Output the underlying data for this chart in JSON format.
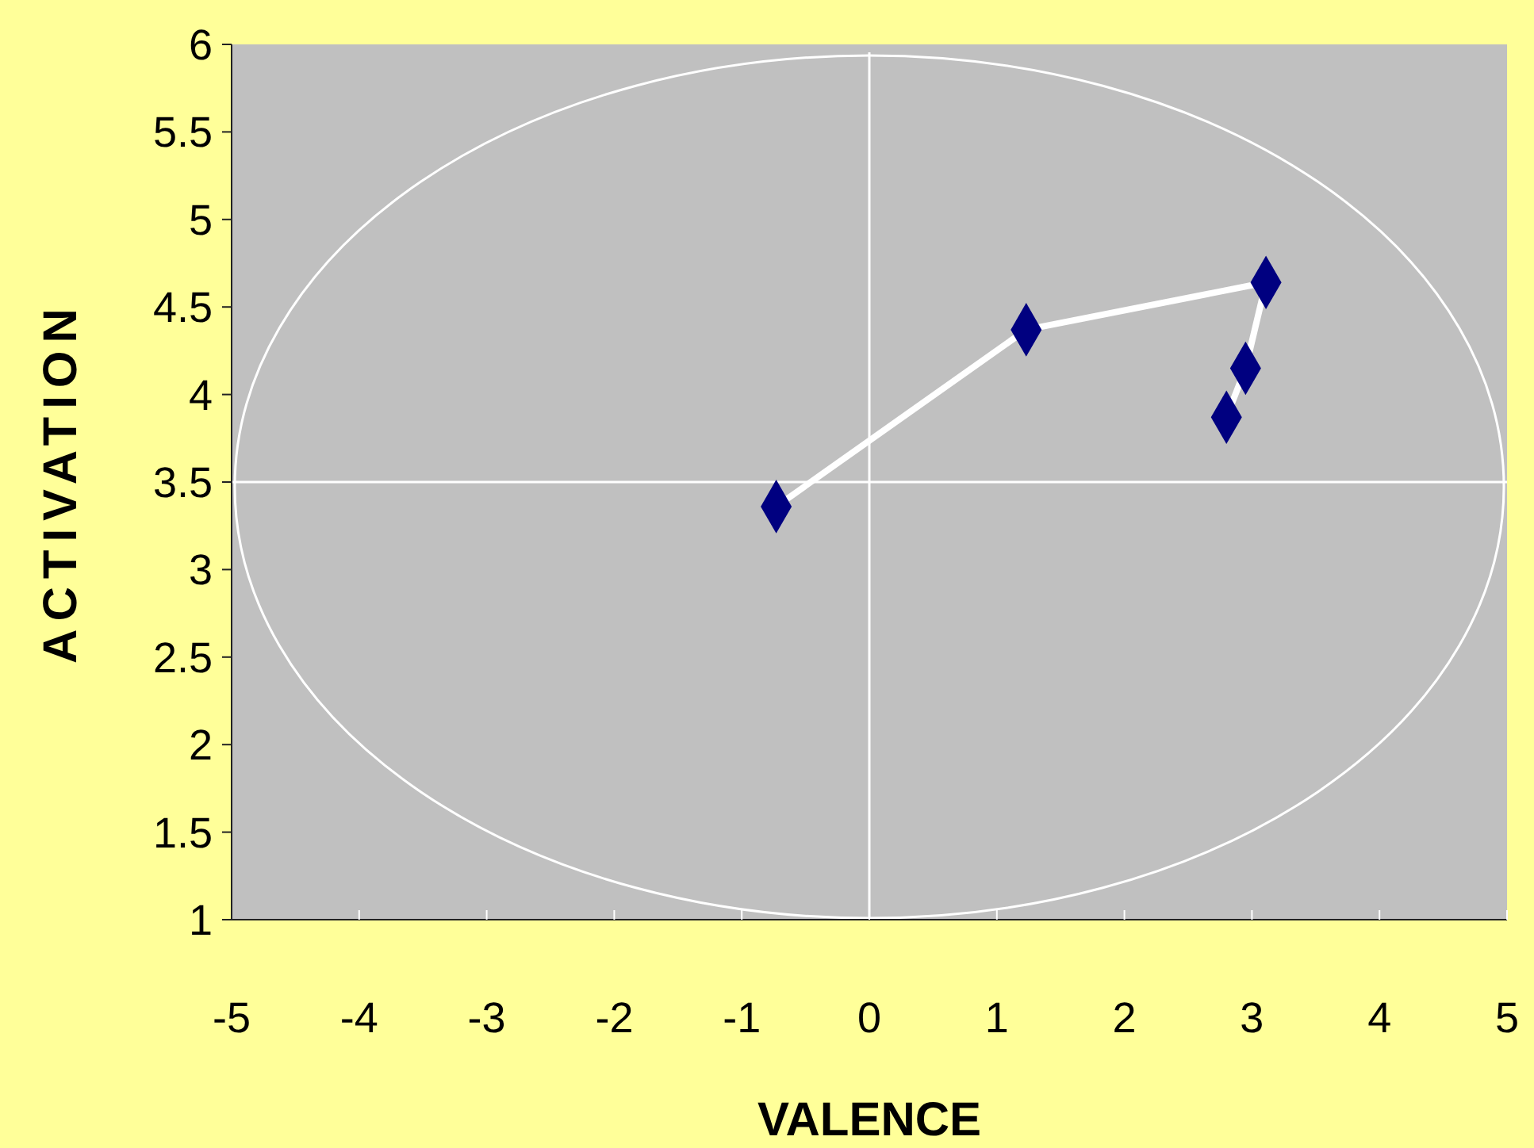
{
  "chart_data": {
    "type": "scatter",
    "xlabel": "VALENCE",
    "ylabel": "ACTIVATION",
    "xlim": [
      -5,
      5
    ],
    "xticks": [
      -5,
      -4,
      -3,
      -2,
      -1,
      0,
      1,
      2,
      3,
      4,
      5
    ],
    "ylim": [
      1,
      6
    ],
    "yticks": [
      1,
      1.5,
      2,
      2.5,
      3,
      3.5,
      4,
      4.5,
      5,
      5.5,
      6
    ],
    "grid": false,
    "marker": "diamond",
    "line_style": "solid",
    "ref_lines": [
      {
        "axis": "x",
        "value": 0,
        "color": "#ffffff"
      },
      {
        "axis": "y",
        "value": 3.5,
        "color": "#ffffff"
      }
    ],
    "series": [
      {
        "type": "line",
        "color": "#000080",
        "x": [
          -0.73,
          1.23,
          3.11,
          2.95,
          2.8
        ],
        "values": [
          3.36,
          4.37,
          4.64,
          4.15,
          3.87
        ]
      }
    ]
  }
}
